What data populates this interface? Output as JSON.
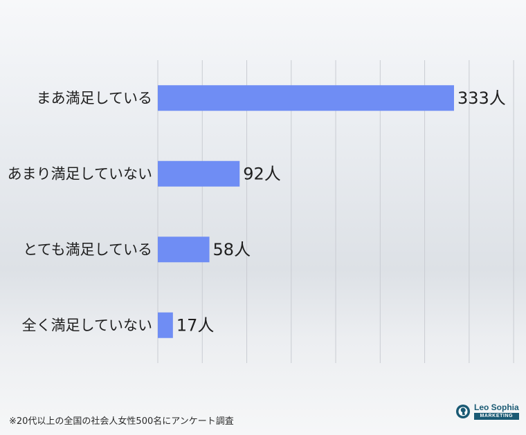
{
  "chart_data": {
    "type": "bar",
    "orientation": "horizontal",
    "categories": [
      "まあ満足している",
      "あまり満足していない",
      "とても満足している",
      "全く満足していない"
    ],
    "values": [
      333,
      92,
      58,
      17
    ],
    "value_labels": [
      "333人",
      "92人",
      "58人",
      "17人"
    ],
    "xlim": [
      0,
      400
    ],
    "grid": true,
    "bar_color": "#6f8df4"
  },
  "footnote": "※20代以上の全国の社会人女性500名にアンケート調査",
  "logo": {
    "name": "Leo Sophia",
    "sub": "MARKETING",
    "icon": "lion-head-icon"
  }
}
